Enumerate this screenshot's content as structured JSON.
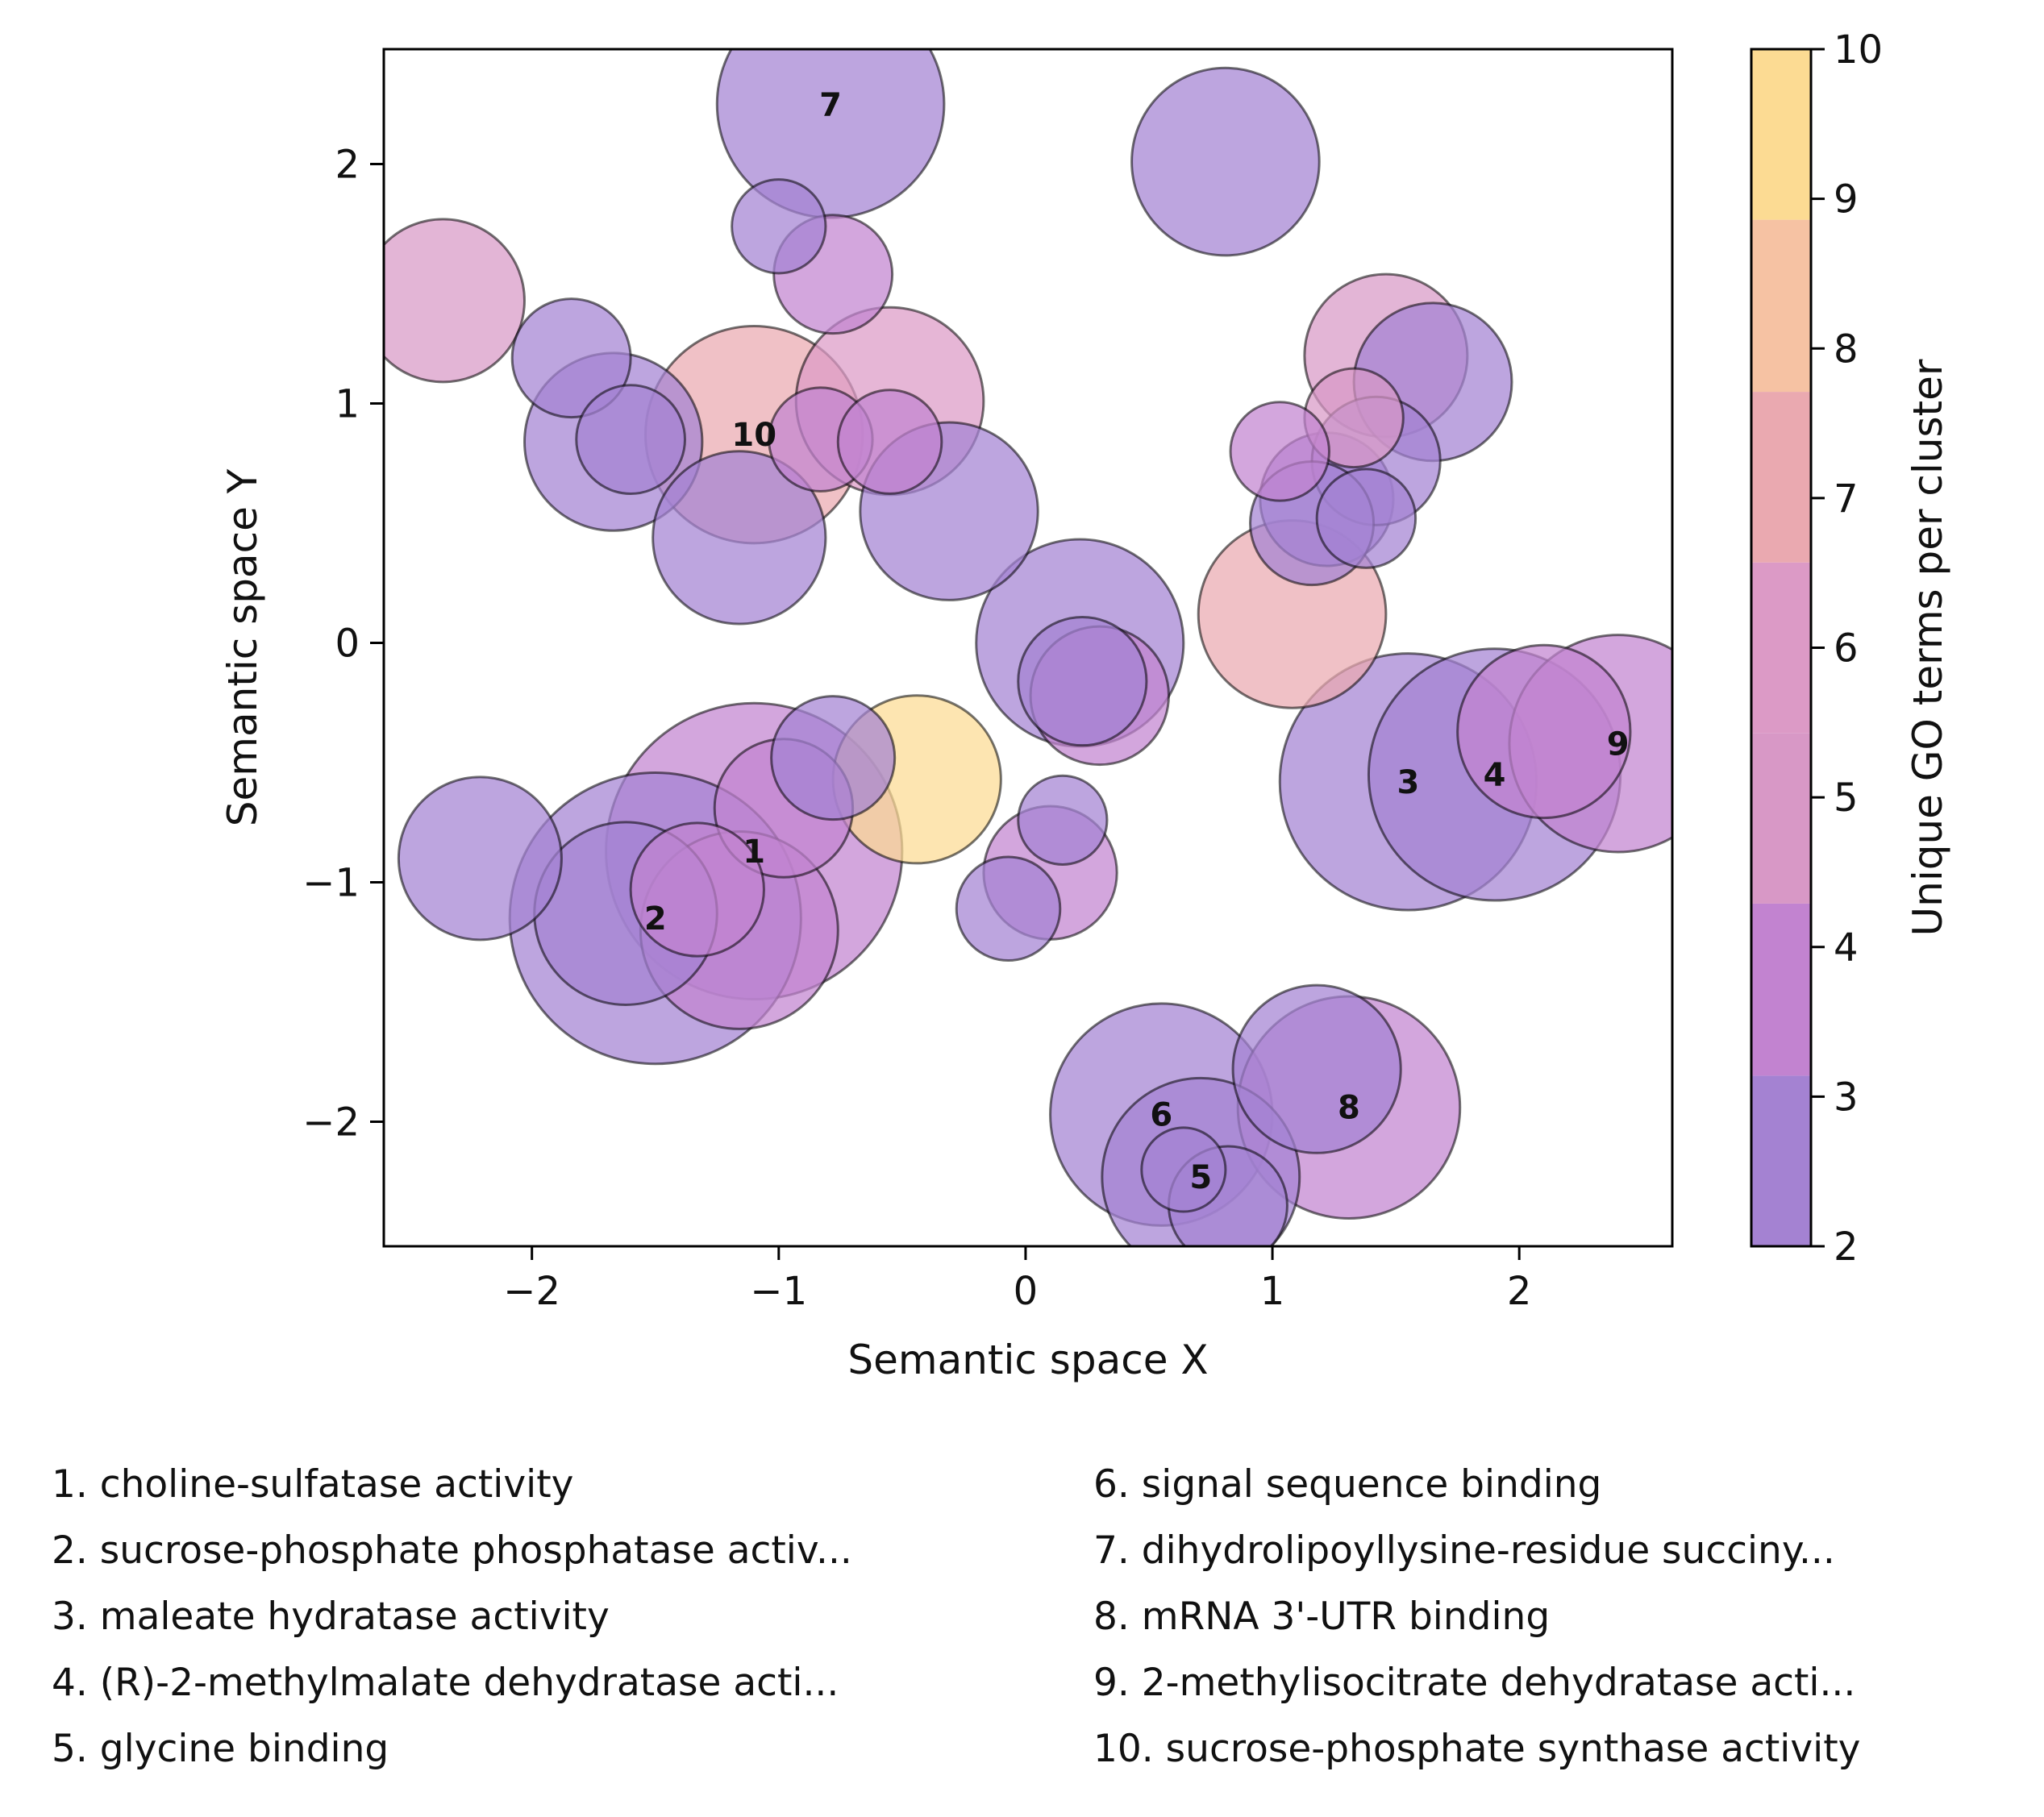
{
  "chart_data": {
    "type": "scatter",
    "xlabel": "Semantic space X",
    "ylabel": "Semantic space Y",
    "xlim": [
      -2.6,
      2.62
    ],
    "ylim": [
      -2.52,
      2.48
    ],
    "xticks": [
      -2,
      -1,
      0,
      1,
      2
    ],
    "yticks": [
      -2,
      -1,
      0,
      1,
      2
    ],
    "tick_labels_x": [
      "−2",
      "−1",
      "0",
      "1",
      "2"
    ],
    "tick_labels_y": [
      "−2",
      "−1",
      "0",
      "1",
      "2"
    ],
    "grid": false,
    "colorbar": {
      "label": "Unique GO terms per cluster",
      "range": [
        2,
        10
      ],
      "ticks": [
        2,
        3,
        4,
        5,
        6,
        7,
        8,
        9,
        10
      ],
      "tick_labels": [
        "2",
        "3",
        "4",
        "5",
        "6",
        "7",
        "8",
        "9",
        "10"
      ],
      "bands": [
        {
          "from": 2.0,
          "to": 3.14,
          "color": "#a482d2"
        },
        {
          "from": 3.14,
          "to": 4.29,
          "color": "#c283d0"
        },
        {
          "from": 4.29,
          "to": 5.43,
          "color": "#d898c6"
        },
        {
          "from": 5.43,
          "to": 6.57,
          "color": "#dc9ac6"
        },
        {
          "from": 6.57,
          "to": 7.71,
          "color": "#eaa9b0"
        },
        {
          "from": 7.71,
          "to": 8.86,
          "color": "#f6c2a3"
        },
        {
          "from": 8.86,
          "to": 10.0,
          "color": "#fcdb93"
        }
      ]
    },
    "points": [
      {
        "x": -0.79,
        "y": 2.25,
        "r": 0.46,
        "c": 2,
        "label": "7"
      },
      {
        "x": 0.81,
        "y": 2.01,
        "r": 0.38,
        "c": 2
      },
      {
        "x": -1.0,
        "y": 1.74,
        "r": 0.19,
        "c": 2
      },
      {
        "x": -0.78,
        "y": 1.54,
        "r": 0.24,
        "c": 4
      },
      {
        "x": -2.36,
        "y": 1.43,
        "r": 0.33,
        "c": 5
      },
      {
        "x": -1.84,
        "y": 1.19,
        "r": 0.24,
        "c": 2
      },
      {
        "x": -1.67,
        "y": 0.84,
        "r": 0.36,
        "c": 2
      },
      {
        "x": -1.6,
        "y": 0.85,
        "r": 0.22,
        "c": 2
      },
      {
        "x": -1.16,
        "y": 0.44,
        "r": 0.35,
        "c": 2
      },
      {
        "x": -1.1,
        "y": 0.87,
        "r": 0.44,
        "c": 7,
        "label": "10"
      },
      {
        "x": -0.55,
        "y": 1.01,
        "r": 0.38,
        "c": 6
      },
      {
        "x": -0.83,
        "y": 0.85,
        "r": 0.21,
        "c": 4
      },
      {
        "x": -0.55,
        "y": 0.84,
        "r": 0.21,
        "c": 4
      },
      {
        "x": -0.31,
        "y": 0.55,
        "r": 0.36,
        "c": 2
      },
      {
        "x": 0.22,
        "y": 0.0,
        "r": 0.42,
        "c": 2
      },
      {
        "x": 0.3,
        "y": -0.22,
        "r": 0.28,
        "c": 4
      },
      {
        "x": 0.23,
        "y": -0.16,
        "r": 0.26,
        "c": 2
      },
      {
        "x": 1.46,
        "y": 1.2,
        "r": 0.33,
        "c": 5
      },
      {
        "x": 1.65,
        "y": 1.09,
        "r": 0.32,
        "c": 2
      },
      {
        "x": 1.33,
        "y": 0.94,
        "r": 0.2,
        "c": 5
      },
      {
        "x": 1.03,
        "y": 0.8,
        "r": 0.2,
        "c": 4
      },
      {
        "x": 1.42,
        "y": 0.76,
        "r": 0.26,
        "c": 2
      },
      {
        "x": 1.22,
        "y": 0.6,
        "r": 0.27,
        "c": 2
      },
      {
        "x": 1.16,
        "y": 0.5,
        "r": 0.25,
        "c": 2
      },
      {
        "x": 1.38,
        "y": 0.52,
        "r": 0.2,
        "c": 2
      },
      {
        "x": 1.08,
        "y": 0.12,
        "r": 0.38,
        "c": 7
      },
      {
        "x": 1.55,
        "y": -0.58,
        "r": 0.52,
        "c": 2,
        "label": "3"
      },
      {
        "x": 1.9,
        "y": -0.55,
        "r": 0.51,
        "c": 2,
        "label": "4"
      },
      {
        "x": 2.1,
        "y": -0.37,
        "r": 0.35,
        "c": 4
      },
      {
        "x": 2.4,
        "y": -0.42,
        "r": 0.44,
        "c": 4,
        "label": "9"
      },
      {
        "x": -0.44,
        "y": -0.57,
        "r": 0.34,
        "c": 10
      },
      {
        "x": -0.78,
        "y": -0.48,
        "r": 0.25,
        "c": 2
      },
      {
        "x": -1.1,
        "y": -0.87,
        "r": 0.6,
        "c": 4,
        "label": "1"
      },
      {
        "x": -0.98,
        "y": -0.69,
        "r": 0.28,
        "c": 4
      },
      {
        "x": -1.5,
        "y": -1.15,
        "r": 0.59,
        "c": 2,
        "label": "2"
      },
      {
        "x": -1.62,
        "y": -1.13,
        "r": 0.37,
        "c": 2
      },
      {
        "x": -1.33,
        "y": -1.03,
        "r": 0.27,
        "c": 4
      },
      {
        "x": -1.16,
        "y": -1.2,
        "r": 0.4,
        "c": 4
      },
      {
        "x": -2.21,
        "y": -0.9,
        "r": 0.33,
        "c": 2
      },
      {
        "x": 0.15,
        "y": -0.74,
        "r": 0.18,
        "c": 2
      },
      {
        "x": 0.1,
        "y": -0.96,
        "r": 0.27,
        "c": 4
      },
      {
        "x": -0.07,
        "y": -1.11,
        "r": 0.21,
        "c": 2
      },
      {
        "x": 0.55,
        "y": -1.97,
        "r": 0.45,
        "c": 2,
        "label": "6"
      },
      {
        "x": 1.18,
        "y": -1.78,
        "r": 0.34,
        "c": 2
      },
      {
        "x": 1.31,
        "y": -1.94,
        "r": 0.45,
        "c": 4,
        "label": "8"
      },
      {
        "x": 0.71,
        "y": -2.23,
        "r": 0.4,
        "c": 2,
        "label": "5"
      },
      {
        "x": 0.64,
        "y": -2.2,
        "r": 0.17,
        "c": 2
      },
      {
        "x": 0.82,
        "y": -2.35,
        "r": 0.24,
        "c": 2
      }
    ]
  },
  "legend": {
    "items": [
      "1. choline-sulfatase activity",
      "2. sucrose-phosphate phosphatase activ...",
      "3. maleate hydratase activity",
      "4. (R)-2-methylmalate dehydratase acti...",
      "5. glycine binding",
      "6. signal sequence binding",
      "7. dihydrolipoyllysine-residue succiny...",
      "8. mRNA 3'-UTR binding",
      "9. 2-methylisocitrate dehydratase acti...",
      "10. sucrose-phosphate synthase activity"
    ]
  }
}
